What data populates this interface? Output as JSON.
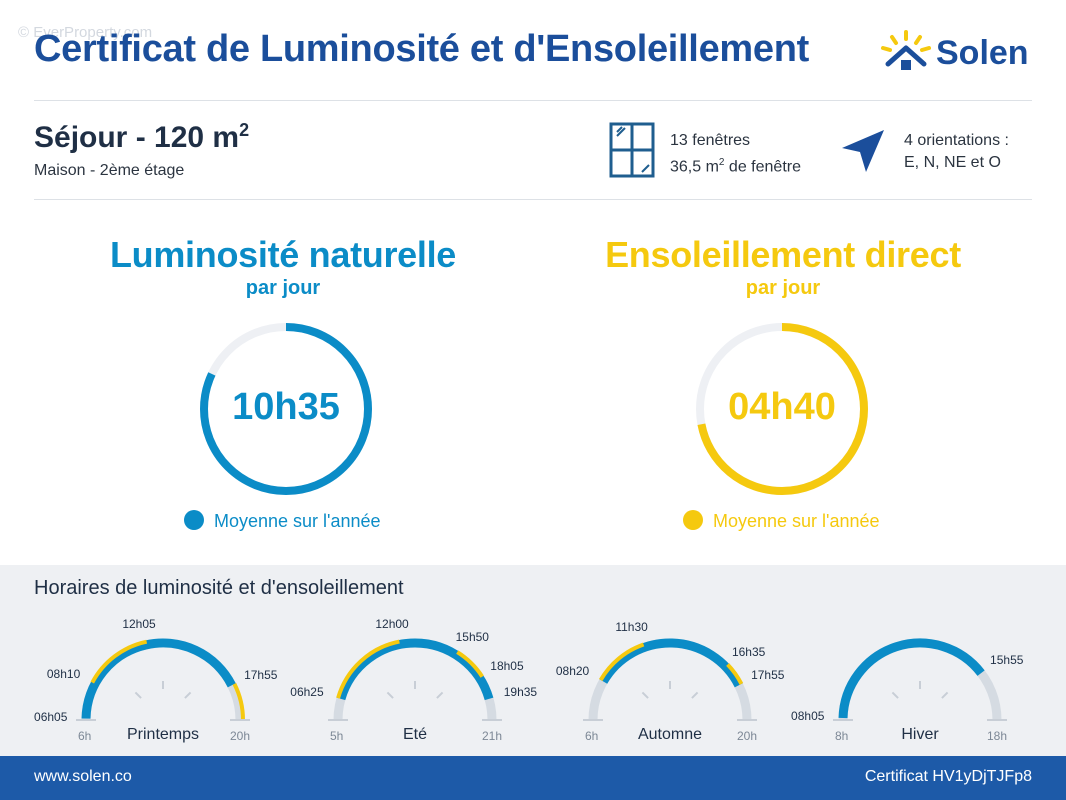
{
  "watermark": "© EverProperty.com",
  "header": {
    "title": "Certificat de Luminosité et d'Ensoleillement",
    "logo_text": "Solen"
  },
  "room": {
    "name": "Séjour - 120 m",
    "name_sup": "2",
    "subtitle": "Maison - 2ème étage"
  },
  "windows": {
    "count_text": "13 fenêtres",
    "area_prefix": "36,5 m",
    "area_sup": "2",
    "area_suffix": " de fenêtre"
  },
  "orientations": {
    "line1": "4 orientations :",
    "line2": "E, N, NE et O"
  },
  "luminosite": {
    "title": "Luminosité naturelle",
    "subtitle": "par jour",
    "value": "10h35",
    "fraction": 0.82,
    "legend": "Moyenne sur l'année",
    "color": "#0b8cc7"
  },
  "ensoleillement": {
    "title": "Ensoleillement direct",
    "subtitle": "par jour",
    "value": "04h40",
    "fraction": 0.72,
    "legend": "Moyenne sur l'année",
    "color": "#f5c90f"
  },
  "schedule": {
    "title": "Horaires de luminosité et d'ensoleillement",
    "seasons": [
      {
        "name": "Printemps",
        "start_axis": "6h",
        "end_axis": "20h",
        "axis_min": 6,
        "axis_max": 20,
        "light_start": 6.0833,
        "light_end": 17.9167,
        "sun_start": 8.1667,
        "sun_end": 12.0833,
        "sun2_start": 17.9167,
        "sun2_end": 20,
        "labels": [
          "06h05",
          "08h10",
          "12h05",
          "17h55"
        ]
      },
      {
        "name": "Eté",
        "start_axis": "5h",
        "end_axis": "21h",
        "axis_min": 5,
        "axis_max": 21,
        "light_start": 6.4167,
        "light_end": 19.5833,
        "sun_start": 6.4167,
        "sun_end": 12.0,
        "sun2_start": 15.8333,
        "sun2_end": 18.0833,
        "labels": [
          "06h25",
          "12h00",
          "15h50",
          "18h05",
          "19h35"
        ]
      },
      {
        "name": "Automne",
        "start_axis": "6h",
        "end_axis": "20h",
        "axis_min": 6,
        "axis_max": 20,
        "light_start": 8.3333,
        "light_end": 17.9167,
        "sun_start": 8.3333,
        "sun_end": 11.5,
        "sun2_start": 16.5833,
        "sun2_end": 17.9167,
        "labels": [
          "08h20",
          "11h30",
          "16h35",
          "17h55"
        ]
      },
      {
        "name": "Hiver",
        "start_axis": "8h",
        "end_axis": "18h",
        "axis_min": 8,
        "axis_max": 18,
        "light_start": 8.0833,
        "light_end": 15.9167,
        "sun_start": null,
        "sun_end": null,
        "sun2_start": null,
        "sun2_end": null,
        "labels": [
          "08h05",
          "15h55"
        ]
      }
    ]
  },
  "footer": {
    "website": "www.solen.co",
    "certificate": "Certificat HV1yDjTJFp8"
  },
  "colors": {
    "blue": "#0b8cc7",
    "yellow": "#f5c90f",
    "grey": "#d5dbe2",
    "navy": "#1b4e9b"
  }
}
